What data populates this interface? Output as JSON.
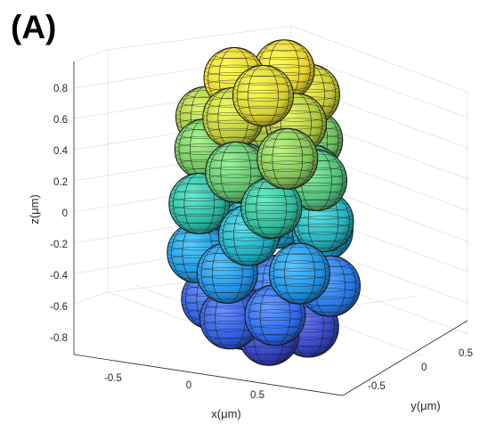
{
  "panel_label": "(A)",
  "chart_data": {
    "type": "scatter",
    "subtype": "3d-sphere-packing",
    "title": "",
    "xlabel": "x(μm)",
    "ylabel": "y(μm)",
    "zlabel": "z(μm)",
    "xlim": [
      -0.85,
      0.9
    ],
    "ylim": [
      -0.9,
      0.9
    ],
    "zlim": [
      -0.9,
      0.95
    ],
    "xticks": [
      "-0.5",
      "0",
      "0.5"
    ],
    "yticks": [
      "-0.5",
      "0",
      "0.5"
    ],
    "zticks": [
      "-0.8",
      "-0.6",
      "-0.4",
      "-0.2",
      "0",
      "0.2",
      "0.4",
      "0.6",
      "0.8"
    ],
    "grid": true,
    "colormap": "parula (by z)",
    "colors": {
      "low": "#3e26a8",
      "mid": "#1fb3c9",
      "high": "#f9d72c",
      "edge": "#1a1a1a"
    },
    "sphere_radius": 0.2,
    "spheres": [
      {
        "x": -0.1,
        "y": 0.05,
        "z": -0.72
      },
      {
        "x": 0.22,
        "y": -0.05,
        "z": -0.75
      },
      {
        "x": 0.4,
        "y": 0.25,
        "z": -0.72
      },
      {
        "x": -0.35,
        "y": -0.1,
        "z": -0.6
      },
      {
        "x": 0.05,
        "y": -0.35,
        "z": -0.62
      },
      {
        "x": 0.45,
        "y": -0.25,
        "z": -0.55
      },
      {
        "x": -0.05,
        "y": 0.4,
        "z": -0.55
      },
      {
        "x": 0.55,
        "y": 0.35,
        "z": -0.45
      },
      {
        "x": -0.45,
        "y": 0.3,
        "z": -0.4
      },
      {
        "x": 0.1,
        "y": -0.45,
        "z": -0.3
      },
      {
        "x": -0.3,
        "y": -0.35,
        "z": -0.25
      },
      {
        "x": 0.55,
        "y": -0.05,
        "z": -0.3
      },
      {
        "x": 0.35,
        "y": 0.5,
        "z": -0.15
      },
      {
        "x": -0.15,
        "y": 0.5,
        "z": -0.15
      },
      {
        "x": 0.25,
        "y": -0.35,
        "z": -0.05
      },
      {
        "x": -0.45,
        "y": -0.05,
        "z": -0.05
      },
      {
        "x": 0.0,
        "y": 0.0,
        "z": -0.1
      },
      {
        "x": 0.6,
        "y": 0.2,
        "z": 0.0
      },
      {
        "x": -0.55,
        "y": 0.35,
        "z": 0.05
      },
      {
        "x": 0.1,
        "y": 0.45,
        "z": 0.1
      },
      {
        "x": -0.2,
        "y": -0.45,
        "z": 0.1
      },
      {
        "x": 0.45,
        "y": -0.3,
        "z": 0.15
      },
      {
        "x": -0.05,
        "y": -0.05,
        "z": 0.25
      },
      {
        "x": 0.4,
        "y": 0.3,
        "z": 0.25
      },
      {
        "x": -0.4,
        "y": 0.1,
        "z": 0.25
      },
      {
        "x": 0.65,
        "y": 0.05,
        "z": 0.3
      },
      {
        "x": 0.15,
        "y": -0.4,
        "z": 0.35
      },
      {
        "x": -0.3,
        "y": -0.25,
        "z": 0.4
      },
      {
        "x": 0.2,
        "y": 0.55,
        "z": 0.4
      },
      {
        "x": -0.25,
        "y": 0.5,
        "z": 0.45
      },
      {
        "x": 0.5,
        "y": -0.15,
        "z": 0.45
      },
      {
        "x": 0.0,
        "y": 0.2,
        "z": 0.55
      },
      {
        "x": -0.45,
        "y": -0.05,
        "z": 0.55
      },
      {
        "x": 0.35,
        "y": 0.15,
        "z": 0.6
      },
      {
        "x": 0.0,
        "y": -0.25,
        "z": 0.65
      },
      {
        "x": -0.2,
        "y": 0.25,
        "z": 0.72
      },
      {
        "x": 0.25,
        "y": 0.45,
        "z": 0.72
      },
      {
        "x": 0.2,
        "y": -0.1,
        "z": 0.8
      },
      {
        "x": -0.15,
        "y": -0.05,
        "z": 0.85
      },
      {
        "x": 0.1,
        "y": 0.3,
        "z": 0.88
      }
    ]
  }
}
